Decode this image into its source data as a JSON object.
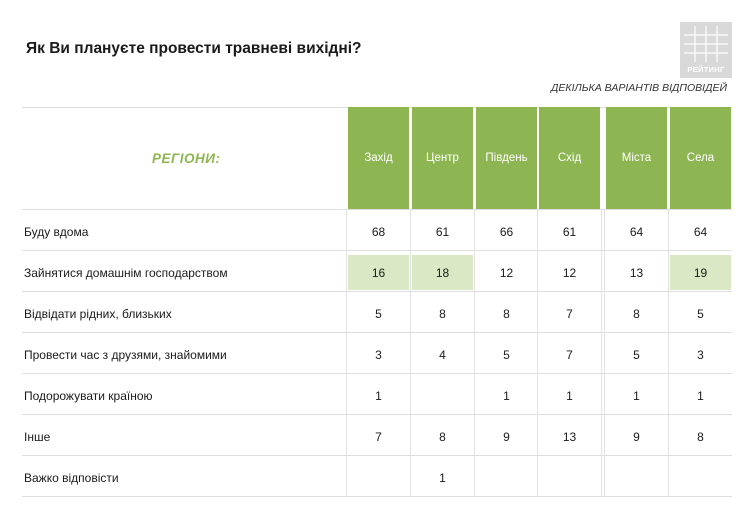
{
  "header": {
    "title": "Як Ви плануєте провести травневі вихідні?",
    "note": "ДЕКІЛЬКА ВАРІАНТІВ ВІДПОВІДЕЙ",
    "brand": "РЕЙТИНГ"
  },
  "chart_data": {
    "type": "table",
    "row_header": "РЕГІОНИ:",
    "columns": [
      "Захід",
      "Центр",
      "Південь",
      "Схід",
      "Міста",
      "Села"
    ],
    "highlight_color": "#dbe8c6",
    "header_color": "#8db652",
    "rows": [
      {
        "label": "Буду вдома",
        "values": [
          "68",
          "61",
          "66",
          "61",
          "64",
          "64"
        ],
        "highlight": [
          false,
          false,
          false,
          false,
          false,
          false
        ]
      },
      {
        "label": "Зайнятися домашнім господарством",
        "values": [
          "16",
          "18",
          "12",
          "12",
          "13",
          "19"
        ],
        "highlight": [
          true,
          true,
          false,
          false,
          false,
          true
        ]
      },
      {
        "label": "Відвідати рідних, близьких",
        "values": [
          "5",
          "8",
          "8",
          "7",
          "8",
          "5"
        ],
        "highlight": [
          false,
          false,
          false,
          false,
          false,
          false
        ]
      },
      {
        "label": "Провести час з друзями, знайомими",
        "values": [
          "3",
          "4",
          "5",
          "7",
          "5",
          "3"
        ],
        "highlight": [
          false,
          false,
          false,
          false,
          false,
          false
        ]
      },
      {
        "label": "Подорожувати країною",
        "values": [
          "1",
          "",
          "1",
          "1",
          "1",
          "1"
        ],
        "highlight": [
          false,
          false,
          false,
          false,
          false,
          false
        ]
      },
      {
        "label": "Інше",
        "values": [
          "7",
          "8",
          "9",
          "13",
          "9",
          "8"
        ],
        "highlight": [
          false,
          false,
          false,
          false,
          false,
          false
        ]
      },
      {
        "label": "Важко відповісти",
        "values": [
          "",
          "1",
          "",
          "",
          "",
          ""
        ],
        "highlight": [
          false,
          false,
          false,
          false,
          false,
          false
        ]
      }
    ]
  }
}
